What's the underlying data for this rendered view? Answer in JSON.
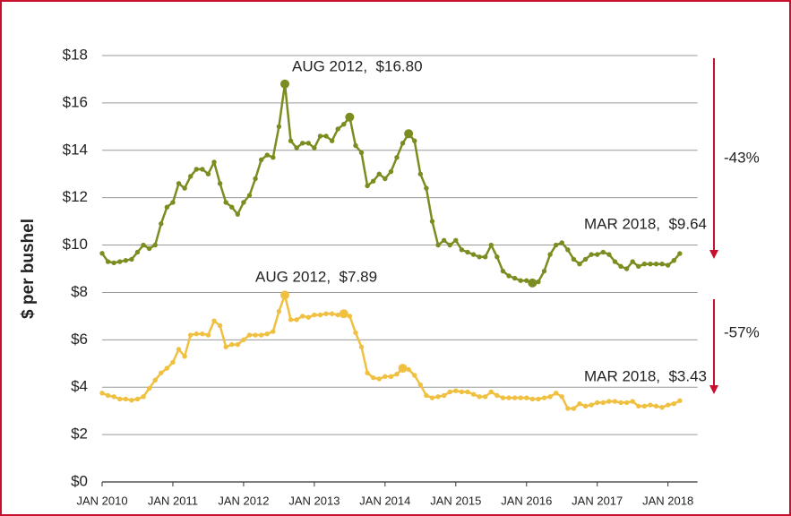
{
  "chart_data": {
    "type": "line",
    "y_label": "$ per bushel",
    "xlim": [
      "2010-01",
      "2018-06"
    ],
    "xticks": [
      {
        "value": "2010-01",
        "label": "JAN 2010"
      },
      {
        "value": "2011-01",
        "label": "JAN 2011"
      },
      {
        "value": "2012-01",
        "label": "JAN 2012"
      },
      {
        "value": "2013-01",
        "label": "JAN 2013"
      },
      {
        "value": "2014-01",
        "label": "JAN 2014"
      },
      {
        "value": "2015-01",
        "label": "JAN 2015"
      },
      {
        "value": "2016-01",
        "label": "JAN 2016"
      },
      {
        "value": "2017-01",
        "label": "JAN 2017"
      },
      {
        "value": "2018-01",
        "label": "JAN 2018"
      }
    ],
    "ylim": [
      0,
      18
    ],
    "yticks": [
      {
        "value": 0,
        "label": "$0"
      },
      {
        "value": 2,
        "label": "$2"
      },
      {
        "value": 4,
        "label": "$4"
      },
      {
        "value": 6,
        "label": "$6"
      },
      {
        "value": 8,
        "label": "$8"
      },
      {
        "value": 10,
        "label": "$10"
      },
      {
        "value": 12,
        "label": "$12"
      },
      {
        "value": 14,
        "label": "$14"
      },
      {
        "value": 16,
        "label": "$16"
      },
      {
        "value": 18,
        "label": "$18"
      }
    ],
    "grid": true,
    "x": [
      "2010-01",
      "2010-02",
      "2010-03",
      "2010-04",
      "2010-05",
      "2010-06",
      "2010-07",
      "2010-08",
      "2010-09",
      "2010-10",
      "2010-11",
      "2010-12",
      "2011-01",
      "2011-02",
      "2011-03",
      "2011-04",
      "2011-05",
      "2011-06",
      "2011-07",
      "2011-08",
      "2011-09",
      "2011-10",
      "2011-11",
      "2011-12",
      "2012-01",
      "2012-02",
      "2012-03",
      "2012-04",
      "2012-05",
      "2012-06",
      "2012-07",
      "2012-08",
      "2012-09",
      "2012-10",
      "2012-11",
      "2012-12",
      "2013-01",
      "2013-02",
      "2013-03",
      "2013-04",
      "2013-05",
      "2013-06",
      "2013-07",
      "2013-08",
      "2013-09",
      "2013-10",
      "2013-11",
      "2013-12",
      "2014-01",
      "2014-02",
      "2014-03",
      "2014-04",
      "2014-05",
      "2014-06",
      "2014-07",
      "2014-08",
      "2014-09",
      "2014-10",
      "2014-11",
      "2014-12",
      "2015-01",
      "2015-02",
      "2015-03",
      "2015-04",
      "2015-05",
      "2015-06",
      "2015-07",
      "2015-08",
      "2015-09",
      "2015-10",
      "2015-11",
      "2015-12",
      "2016-01",
      "2016-02",
      "2016-03",
      "2016-04",
      "2016-05",
      "2016-06",
      "2016-07",
      "2016-08",
      "2016-09",
      "2016-10",
      "2016-11",
      "2016-12",
      "2017-01",
      "2017-02",
      "2017-03",
      "2017-04",
      "2017-05",
      "2017-06",
      "2017-07",
      "2017-08",
      "2017-09",
      "2017-10",
      "2017-11",
      "2017-12",
      "2018-01",
      "2018-02",
      "2018-03"
    ],
    "series": [
      {
        "color": "#7b8c20",
        "values": [
          9.65,
          9.3,
          9.25,
          9.3,
          9.35,
          9.4,
          9.7,
          10.0,
          9.85,
          10.0,
          10.9,
          11.6,
          11.8,
          12.6,
          12.4,
          12.9,
          13.2,
          13.2,
          13.0,
          13.5,
          12.6,
          11.8,
          11.6,
          11.3,
          11.8,
          12.1,
          12.8,
          13.6,
          13.8,
          13.7,
          15.0,
          16.8,
          14.4,
          14.1,
          14.3,
          14.3,
          14.1,
          14.6,
          14.6,
          14.4,
          14.9,
          15.1,
          15.4,
          14.2,
          13.9,
          12.5,
          12.7,
          13.0,
          12.8,
          13.1,
          13.7,
          14.3,
          14.7,
          14.4,
          13.0,
          12.4,
          11.0,
          10.0,
          10.2,
          10.0,
          10.2,
          9.8,
          9.7,
          9.6,
          9.5,
          9.5,
          10.0,
          9.5,
          8.9,
          8.7,
          8.6,
          8.5,
          8.5,
          8.4,
          8.45,
          8.9,
          9.6,
          10.0,
          10.1,
          9.8,
          9.4,
          9.2,
          9.4,
          9.6,
          9.6,
          9.7,
          9.6,
          9.3,
          9.1,
          9.0,
          9.3,
          9.1,
          9.2,
          9.2,
          9.2,
          9.2,
          9.15,
          9.35,
          9.64
        ]
      },
      {
        "color": "#f0c040",
        "values": [
          3.75,
          3.65,
          3.6,
          3.5,
          3.5,
          3.45,
          3.5,
          3.6,
          3.95,
          4.3,
          4.6,
          4.8,
          5.05,
          5.6,
          5.3,
          6.2,
          6.25,
          6.25,
          6.2,
          6.8,
          6.6,
          5.7,
          5.8,
          5.8,
          6.0,
          6.2,
          6.2,
          6.2,
          6.25,
          6.35,
          7.2,
          7.89,
          6.85,
          6.85,
          7.0,
          6.95,
          7.05,
          7.05,
          7.1,
          7.1,
          7.05,
          7.1,
          7.0,
          6.3,
          5.7,
          4.6,
          4.4,
          4.35,
          4.45,
          4.45,
          4.55,
          4.8,
          4.75,
          4.5,
          4.1,
          3.65,
          3.55,
          3.6,
          3.65,
          3.8,
          3.85,
          3.8,
          3.8,
          3.7,
          3.6,
          3.6,
          3.8,
          3.65,
          3.55,
          3.55,
          3.55,
          3.55,
          3.55,
          3.5,
          3.5,
          3.55,
          3.6,
          3.75,
          3.6,
          3.1,
          3.1,
          3.3,
          3.2,
          3.25,
          3.35,
          3.35,
          3.4,
          3.4,
          3.35,
          3.35,
          3.4,
          3.2,
          3.2,
          3.25,
          3.2,
          3.15,
          3.25,
          3.3,
          3.43
        ]
      }
    ],
    "annotations": [
      "AUG 2012,  $16.80",
      "MAR 2018,  $9.64",
      "AUG 2012,  $7.89",
      "MAR 2018,  $3.43",
      "-43%",
      "-57%"
    ]
  }
}
